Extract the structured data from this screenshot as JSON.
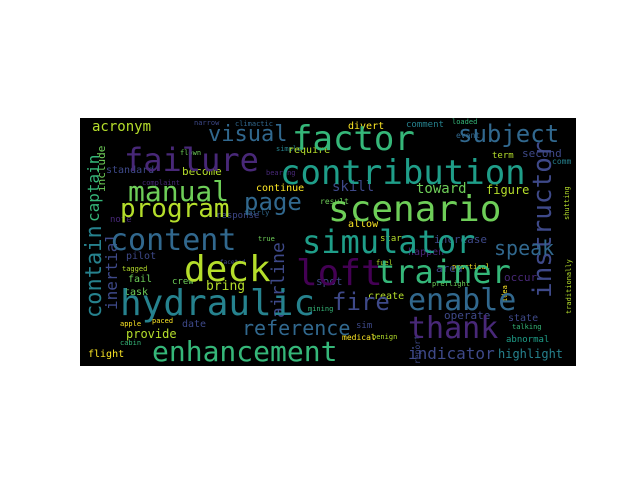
{
  "palette": {
    "background": "#000000",
    "page": "#ffffff",
    "dark_purple": "#440154",
    "purple": "#482878",
    "indigo": "#3e4989",
    "blue": "#31688e",
    "teal": "#26828e",
    "cyan_green": "#1f9e89",
    "green": "#35b779",
    "light_green": "#6ece58",
    "lime": "#b5de2b",
    "yellow": "#fde725"
  },
  "words": {
    "acronym": "acronym",
    "visual": "visual",
    "factor": "factor",
    "subject": "subject",
    "failure": "failure",
    "contribution": "contribution",
    "manual": "manual",
    "program": "program",
    "page": "page",
    "scenario": "scenario",
    "instructor": "instructor",
    "captain": "captain",
    "contain": "contain",
    "content": "content",
    "simulator": "simulator",
    "deck": "deck",
    "loft": "loft",
    "trainer": "trainer",
    "hydraulic": "hydraulic",
    "fire": "fire",
    "enable": "enable",
    "thank": "thank",
    "enhancement": "enhancement",
    "reference": "reference",
    "indicator": "indicator",
    "highlight": "highlight",
    "flight": "flight",
    "airline": "airline",
    "inertial": "inertial",
    "skill": "skill",
    "toward": "toward",
    "speak": "speak",
    "become": "become",
    "continue": "continue",
    "figure": "figure",
    "second": "second",
    "include": "include",
    "standard": "standard",
    "require": "require",
    "divert": "divert",
    "comment": "comment",
    "term": "term",
    "result": "result",
    "allow": "allow",
    "star": "star",
    "increase": "increase",
    "happen": "happen",
    "area": "area",
    "occur": "occur",
    "operate": "operate",
    "state": "state",
    "abnormal": "abnormal",
    "pilot": "pilot",
    "bring": "bring",
    "task": "task",
    "fail": "fail",
    "crew": "crew",
    "provide": "provide",
    "date": "date",
    "create": "create",
    "sim": "sim",
    "spot": "spot",
    "note": "note",
    "medical": "medical",
    "report": "report",
    "event": "event",
    "narrow": "narrow",
    "flown": "flown",
    "response": "response",
    "apple": "apple",
    "paced": "paced",
    "tagged": "tagged",
    "fuel": "fuel",
    "practical": "practical",
    "true": "true",
    "mining": "mining",
    "climactic": "climactic",
    "simple": "simple",
    "complaint": "complaint",
    "fairly": "fairly",
    "idea": "idea",
    "benign": "benign",
    "preflight": "preflight",
    "talking": "talking",
    "loaded": "loaded",
    "cabin": "cabin",
    "traditionally": "traditionally",
    "shutting": "shutting",
    "bearing": "bearing",
    "faceted": "faceted",
    "comm": "comm"
  }
}
